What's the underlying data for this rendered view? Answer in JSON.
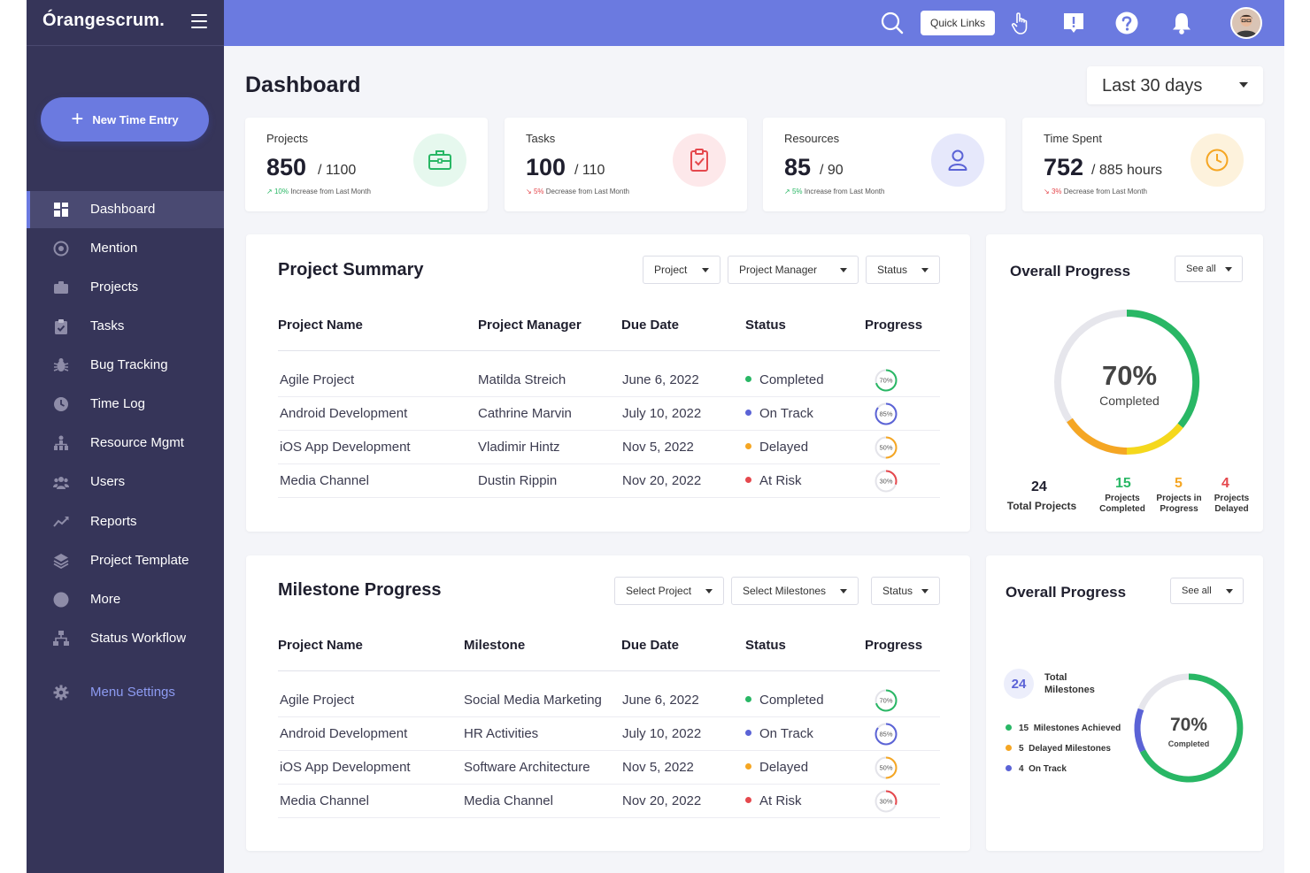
{
  "brand": {
    "name": "Órangescrum."
  },
  "sidebar": {
    "new_entry_label": "New Time Entry",
    "items": [
      {
        "label": "Dashboard",
        "icon": "dashboard-icon"
      },
      {
        "label": "Mention",
        "icon": "at-icon"
      },
      {
        "label": "Projects",
        "icon": "briefcase-icon"
      },
      {
        "label": "Tasks",
        "icon": "clipboard-icon"
      },
      {
        "label": "Bug Tracking",
        "icon": "bug-icon"
      },
      {
        "label": "Time Log",
        "icon": "clock-icon"
      },
      {
        "label": "Resource Mgmt",
        "icon": "hierarchy-icon"
      },
      {
        "label": "Users",
        "icon": "users-icon"
      },
      {
        "label": "Reports",
        "icon": "trend-icon"
      },
      {
        "label": "Project Template",
        "icon": "layers-icon"
      },
      {
        "label": "More",
        "icon": "circle-icon"
      },
      {
        "label": "Status Workflow",
        "icon": "workflow-icon"
      }
    ],
    "settings_label": "Menu Settings"
  },
  "topbar": {
    "quick_links_label": "Quick Links"
  },
  "header": {
    "title": "Dashboard",
    "range": "Last 30 days"
  },
  "kpis": [
    {
      "title": "Projects",
      "value": "850",
      "total": "/ 1100",
      "trend_pct": "10%",
      "trend_text": "Increase from Last Month",
      "direction": "up",
      "icon": "briefcase-icon",
      "color": "#29b765",
      "bg": "#e6f8ee"
    },
    {
      "title": "Tasks",
      "value": "100",
      "total": "/ 110",
      "trend_pct": "5%",
      "trend_text": "Decrease from Last Month",
      "direction": "down",
      "icon": "clipboard-check-icon",
      "color": "#e5484d",
      "bg": "#fde8ea"
    },
    {
      "title": "Resources",
      "value": "85",
      "total": "/ 90",
      "trend_pct": "5%",
      "trend_text": "Increase from Last Month",
      "direction": "up",
      "icon": "user-icon",
      "color": "#5b63d6",
      "bg": "#e6e8fb"
    },
    {
      "title": "Time Spent",
      "value": "752",
      "total": "/ 885  hours",
      "trend_pct": "3%",
      "trend_text": "Decrease from Last Month",
      "direction": "down",
      "icon": "clock-icon",
      "color": "#f5a623",
      "bg": "#fdf2dc"
    }
  ],
  "project_summary": {
    "title": "Project Summary",
    "filters": [
      "Project",
      "Project Manager",
      "Status"
    ],
    "columns": [
      "Project Name",
      "Project Manager",
      "Due Date",
      "Status",
      "Progress"
    ],
    "rows": [
      {
        "name": "Agile Project",
        "manager": "Matilda Streich",
        "due": "June 6, 2022",
        "status": "Completed",
        "progress": "70%"
      },
      {
        "name": "Android Development",
        "manager": "Cathrine Marvin",
        "due": "July 10, 2022",
        "status": "On Track",
        "progress": "85%"
      },
      {
        "name": "iOS App Development",
        "manager": "Vladimir Hintz",
        "due": "Nov 5, 2022",
        "status": "Delayed",
        "progress": "50%"
      },
      {
        "name": "Media Channel",
        "manager": "Dustin Rippin",
        "due": "Nov 20, 2022",
        "status": "At Risk",
        "progress": "30%"
      }
    ]
  },
  "milestone_progress": {
    "title": "Milestone Progress",
    "filters": [
      "Select Project",
      "Select Milestones",
      "Status"
    ],
    "columns": [
      "Project Name",
      "Milestone",
      "Due Date",
      "Status",
      "Progress"
    ],
    "rows": [
      {
        "name": "Agile Project",
        "milestone": "Social Media Marketing",
        "due": "June 6, 2022",
        "status": "Completed",
        "progress": "70%"
      },
      {
        "name": "Android Development",
        "milestone": "HR Activities",
        "due": "July 10, 2022",
        "status": "On Track",
        "progress": "85%"
      },
      {
        "name": "iOS App Development",
        "milestone": "Software Architecture",
        "due": "Nov 5, 2022",
        "status": "Delayed",
        "progress": "50%"
      },
      {
        "name": "Media Channel",
        "milestone": "Media Channel",
        "due": "Nov 20, 2022",
        "status": "At Risk",
        "progress": "30%"
      }
    ]
  },
  "status_colors": {
    "Completed": "#29b765",
    "On Track": "#5b63d6",
    "Delayed": "#f5a623",
    "At Risk": "#e5484d"
  },
  "overall_projects": {
    "title": "Overall Progress",
    "see_all": "See all",
    "percent": "70%",
    "percent_label": "Completed",
    "stats": [
      {
        "value": "24",
        "label": "Total Projects",
        "color": "#1f1f2e"
      },
      {
        "value": "15",
        "label": "Projects Completed",
        "color": "#29b765"
      },
      {
        "value": "5",
        "label": "Projects in Progress",
        "color": "#f5a623"
      },
      {
        "value": "4",
        "label": "Projects Delayed",
        "color": "#e5484d"
      }
    ]
  },
  "overall_milestones": {
    "title": "Overall Progress",
    "see_all": "See all",
    "total_value": "24",
    "total_label": "Total Milestones",
    "percent": "70%",
    "percent_label": "Completed",
    "legend": [
      {
        "value": "15",
        "label": "Milestones Achieved",
        "color": "#29b765"
      },
      {
        "value": "5",
        "label": "Delayed Milestones",
        "color": "#f5a623"
      },
      {
        "value": "4",
        "label": "On Track",
        "color": "#5b63d6"
      }
    ]
  }
}
